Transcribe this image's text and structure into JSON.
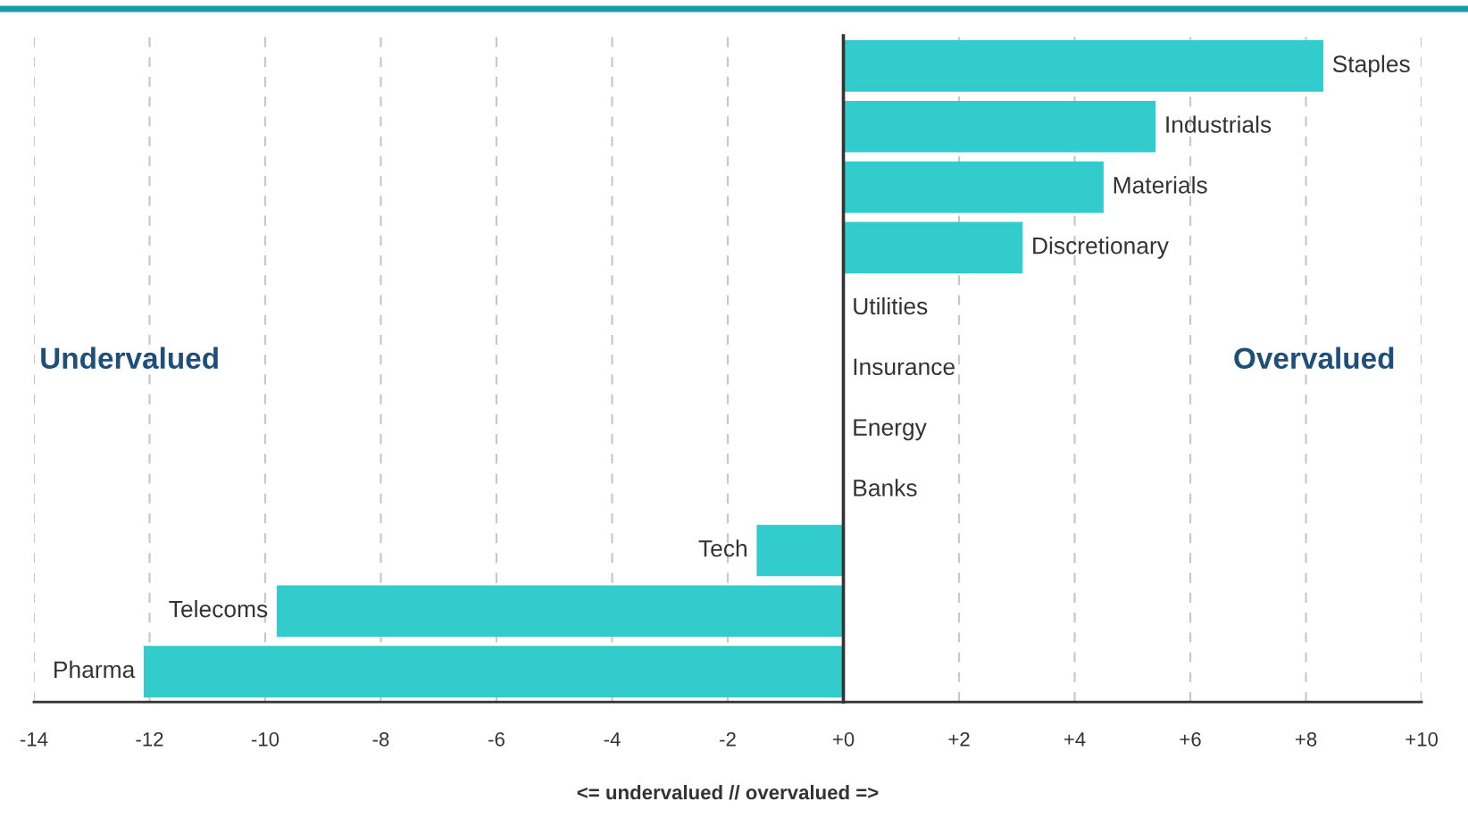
{
  "chart_data": {
    "type": "bar",
    "orientation": "horizontal",
    "categories": [
      "Staples",
      "Industrials",
      "Materials",
      "Discretionary",
      "Utilities",
      "Insurance",
      "Energy",
      "Banks",
      "Tech",
      "Telecoms",
      "Pharma"
    ],
    "values": [
      8.3,
      5.4,
      4.5,
      3.1,
      0,
      0,
      0,
      0,
      -1.5,
      -9.8,
      -12.1
    ],
    "color": "#33cccc",
    "xlim": [
      -14,
      10
    ],
    "xticks": [
      -14,
      -12,
      -10,
      -8,
      -6,
      -4,
      -2,
      {
        "value": 0,
        "label": "+0"
      },
      {
        "value": 2,
        "label": "+2"
      },
      {
        "value": 4,
        "label": "+4"
      },
      {
        "value": 6,
        "label": "+6"
      },
      {
        "value": 8,
        "label": "+8"
      },
      {
        "value": 10,
        "label": "+10"
      }
    ],
    "xlabel": "<= undervalued // overvalued =>",
    "annotations": [
      "Undervalued",
      "Overvalued"
    ],
    "grid": "x"
  }
}
